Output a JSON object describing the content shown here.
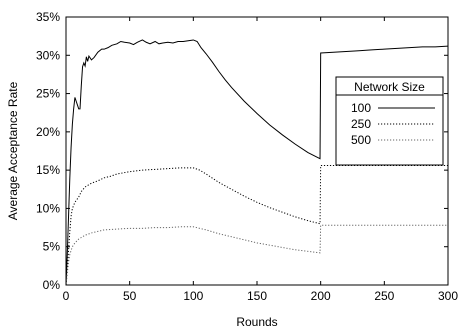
{
  "chart_data": {
    "type": "line",
    "xlabel": "Rounds",
    "ylabel": "Average Acceptance Rate",
    "xlim": [
      0,
      300
    ],
    "ylim": [
      0,
      35
    ],
    "x_ticks": [
      0,
      50,
      100,
      150,
      200,
      250,
      300
    ],
    "y_ticks": [
      0,
      5,
      10,
      15,
      20,
      25,
      30,
      35
    ],
    "y_tick_labels": [
      "0%",
      "5%",
      "10%",
      "15%",
      "20%",
      "25%",
      "30%",
      "35%"
    ],
    "x_tick_labels": [
      "0",
      "50",
      "100",
      "150",
      "200",
      "250",
      "300"
    ],
    "grid": false,
    "legend": {
      "title": "Network Size",
      "placement": "right-center"
    },
    "series": [
      {
        "name": "100",
        "style": "solid",
        "color": "#000000",
        "points": [
          [
            0,
            0
          ],
          [
            1,
            4
          ],
          [
            2,
            9
          ],
          [
            3,
            14
          ],
          [
            4,
            18
          ],
          [
            5,
            21
          ],
          [
            6,
            23
          ],
          [
            7,
            24.5
          ],
          [
            8,
            24
          ],
          [
            9,
            23.5
          ],
          [
            10,
            23
          ],
          [
            11,
            23
          ],
          [
            12,
            26
          ],
          [
            13,
            28.5
          ],
          [
            14,
            29
          ],
          [
            15,
            28.6
          ],
          [
            16,
            29.8
          ],
          [
            17,
            29.2
          ],
          [
            18,
            29.9
          ],
          [
            20,
            29.4
          ],
          [
            22,
            29.7
          ],
          [
            25,
            30.4
          ],
          [
            28,
            30.8
          ],
          [
            30,
            30.8
          ],
          [
            33,
            31.0
          ],
          [
            36,
            31.3
          ],
          [
            40,
            31.5
          ],
          [
            43,
            31.8
          ],
          [
            46,
            31.7
          ],
          [
            50,
            31.6
          ],
          [
            53,
            31.4
          ],
          [
            56,
            31.7
          ],
          [
            60,
            32.0
          ],
          [
            63,
            31.7
          ],
          [
            66,
            31.5
          ],
          [
            70,
            31.8
          ],
          [
            73,
            31.5
          ],
          [
            76,
            31.6
          ],
          [
            80,
            31.7
          ],
          [
            84,
            31.6
          ],
          [
            88,
            31.8
          ],
          [
            92,
            31.8
          ],
          [
            96,
            31.9
          ],
          [
            100,
            32.0
          ],
          [
            103,
            31.8
          ],
          [
            106,
            31.0
          ],
          [
            110,
            30.2
          ],
          [
            115,
            29.1
          ],
          [
            120,
            27.9
          ],
          [
            125,
            26.8
          ],
          [
            130,
            25.8
          ],
          [
            140,
            24.0
          ],
          [
            150,
            22.4
          ],
          [
            160,
            20.9
          ],
          [
            170,
            19.6
          ],
          [
            180,
            18.4
          ],
          [
            190,
            17.3
          ],
          [
            199.5,
            16.5
          ],
          [
            200,
            30.3
          ],
          [
            210,
            30.4
          ],
          [
            220,
            30.5
          ],
          [
            230,
            30.6
          ],
          [
            240,
            30.7
          ],
          [
            250,
            30.8
          ],
          [
            260,
            30.9
          ],
          [
            270,
            31.0
          ],
          [
            280,
            31.1
          ],
          [
            290,
            31.1
          ],
          [
            300,
            31.2
          ]
        ]
      },
      {
        "name": "250",
        "style": "dotted",
        "color": "#000000",
        "points": [
          [
            0,
            0
          ],
          [
            1,
            2
          ],
          [
            2,
            4.5
          ],
          [
            3,
            7
          ],
          [
            4,
            9
          ],
          [
            5,
            10
          ],
          [
            7,
            10.8
          ],
          [
            10,
            11.5
          ],
          [
            12,
            12.2
          ],
          [
            15,
            12.8
          ],
          [
            20,
            13.3
          ],
          [
            25,
            13.6
          ],
          [
            30,
            14.0
          ],
          [
            35,
            14.2
          ],
          [
            40,
            14.5
          ],
          [
            50,
            14.8
          ],
          [
            60,
            15.0
          ],
          [
            70,
            15.1
          ],
          [
            80,
            15.2
          ],
          [
            90,
            15.3
          ],
          [
            100,
            15.3
          ],
          [
            105,
            15.0
          ],
          [
            110,
            14.5
          ],
          [
            120,
            13.4
          ],
          [
            130,
            12.5
          ],
          [
            140,
            11.6
          ],
          [
            150,
            10.8
          ],
          [
            160,
            10.1
          ],
          [
            170,
            9.5
          ],
          [
            180,
            8.9
          ],
          [
            190,
            8.4
          ],
          [
            199.5,
            8.0
          ],
          [
            200,
            15.6
          ],
          [
            225,
            15.6
          ],
          [
            250,
            15.6
          ],
          [
            275,
            15.6
          ],
          [
            300,
            15.6
          ]
        ]
      },
      {
        "name": "500",
        "style": "dotted",
        "color": "#666666",
        "points": [
          [
            0,
            0
          ],
          [
            1,
            1.5
          ],
          [
            2,
            3
          ],
          [
            3,
            4
          ],
          [
            5,
            5
          ],
          [
            7,
            5.5
          ],
          [
            10,
            6.0
          ],
          [
            15,
            6.5
          ],
          [
            20,
            6.8
          ],
          [
            25,
            7.0
          ],
          [
            30,
            7.2
          ],
          [
            40,
            7.3
          ],
          [
            50,
            7.4
          ],
          [
            60,
            7.4
          ],
          [
            70,
            7.5
          ],
          [
            80,
            7.5
          ],
          [
            90,
            7.6
          ],
          [
            100,
            7.6
          ],
          [
            105,
            7.4
          ],
          [
            110,
            7.2
          ],
          [
            120,
            6.7
          ],
          [
            130,
            6.3
          ],
          [
            140,
            5.9
          ],
          [
            150,
            5.5
          ],
          [
            160,
            5.2
          ],
          [
            170,
            4.9
          ],
          [
            180,
            4.6
          ],
          [
            190,
            4.4
          ],
          [
            199.5,
            4.2
          ],
          [
            200,
            7.8
          ],
          [
            225,
            7.8
          ],
          [
            250,
            7.8
          ],
          [
            275,
            7.8
          ],
          [
            300,
            7.8
          ]
        ]
      }
    ]
  }
}
